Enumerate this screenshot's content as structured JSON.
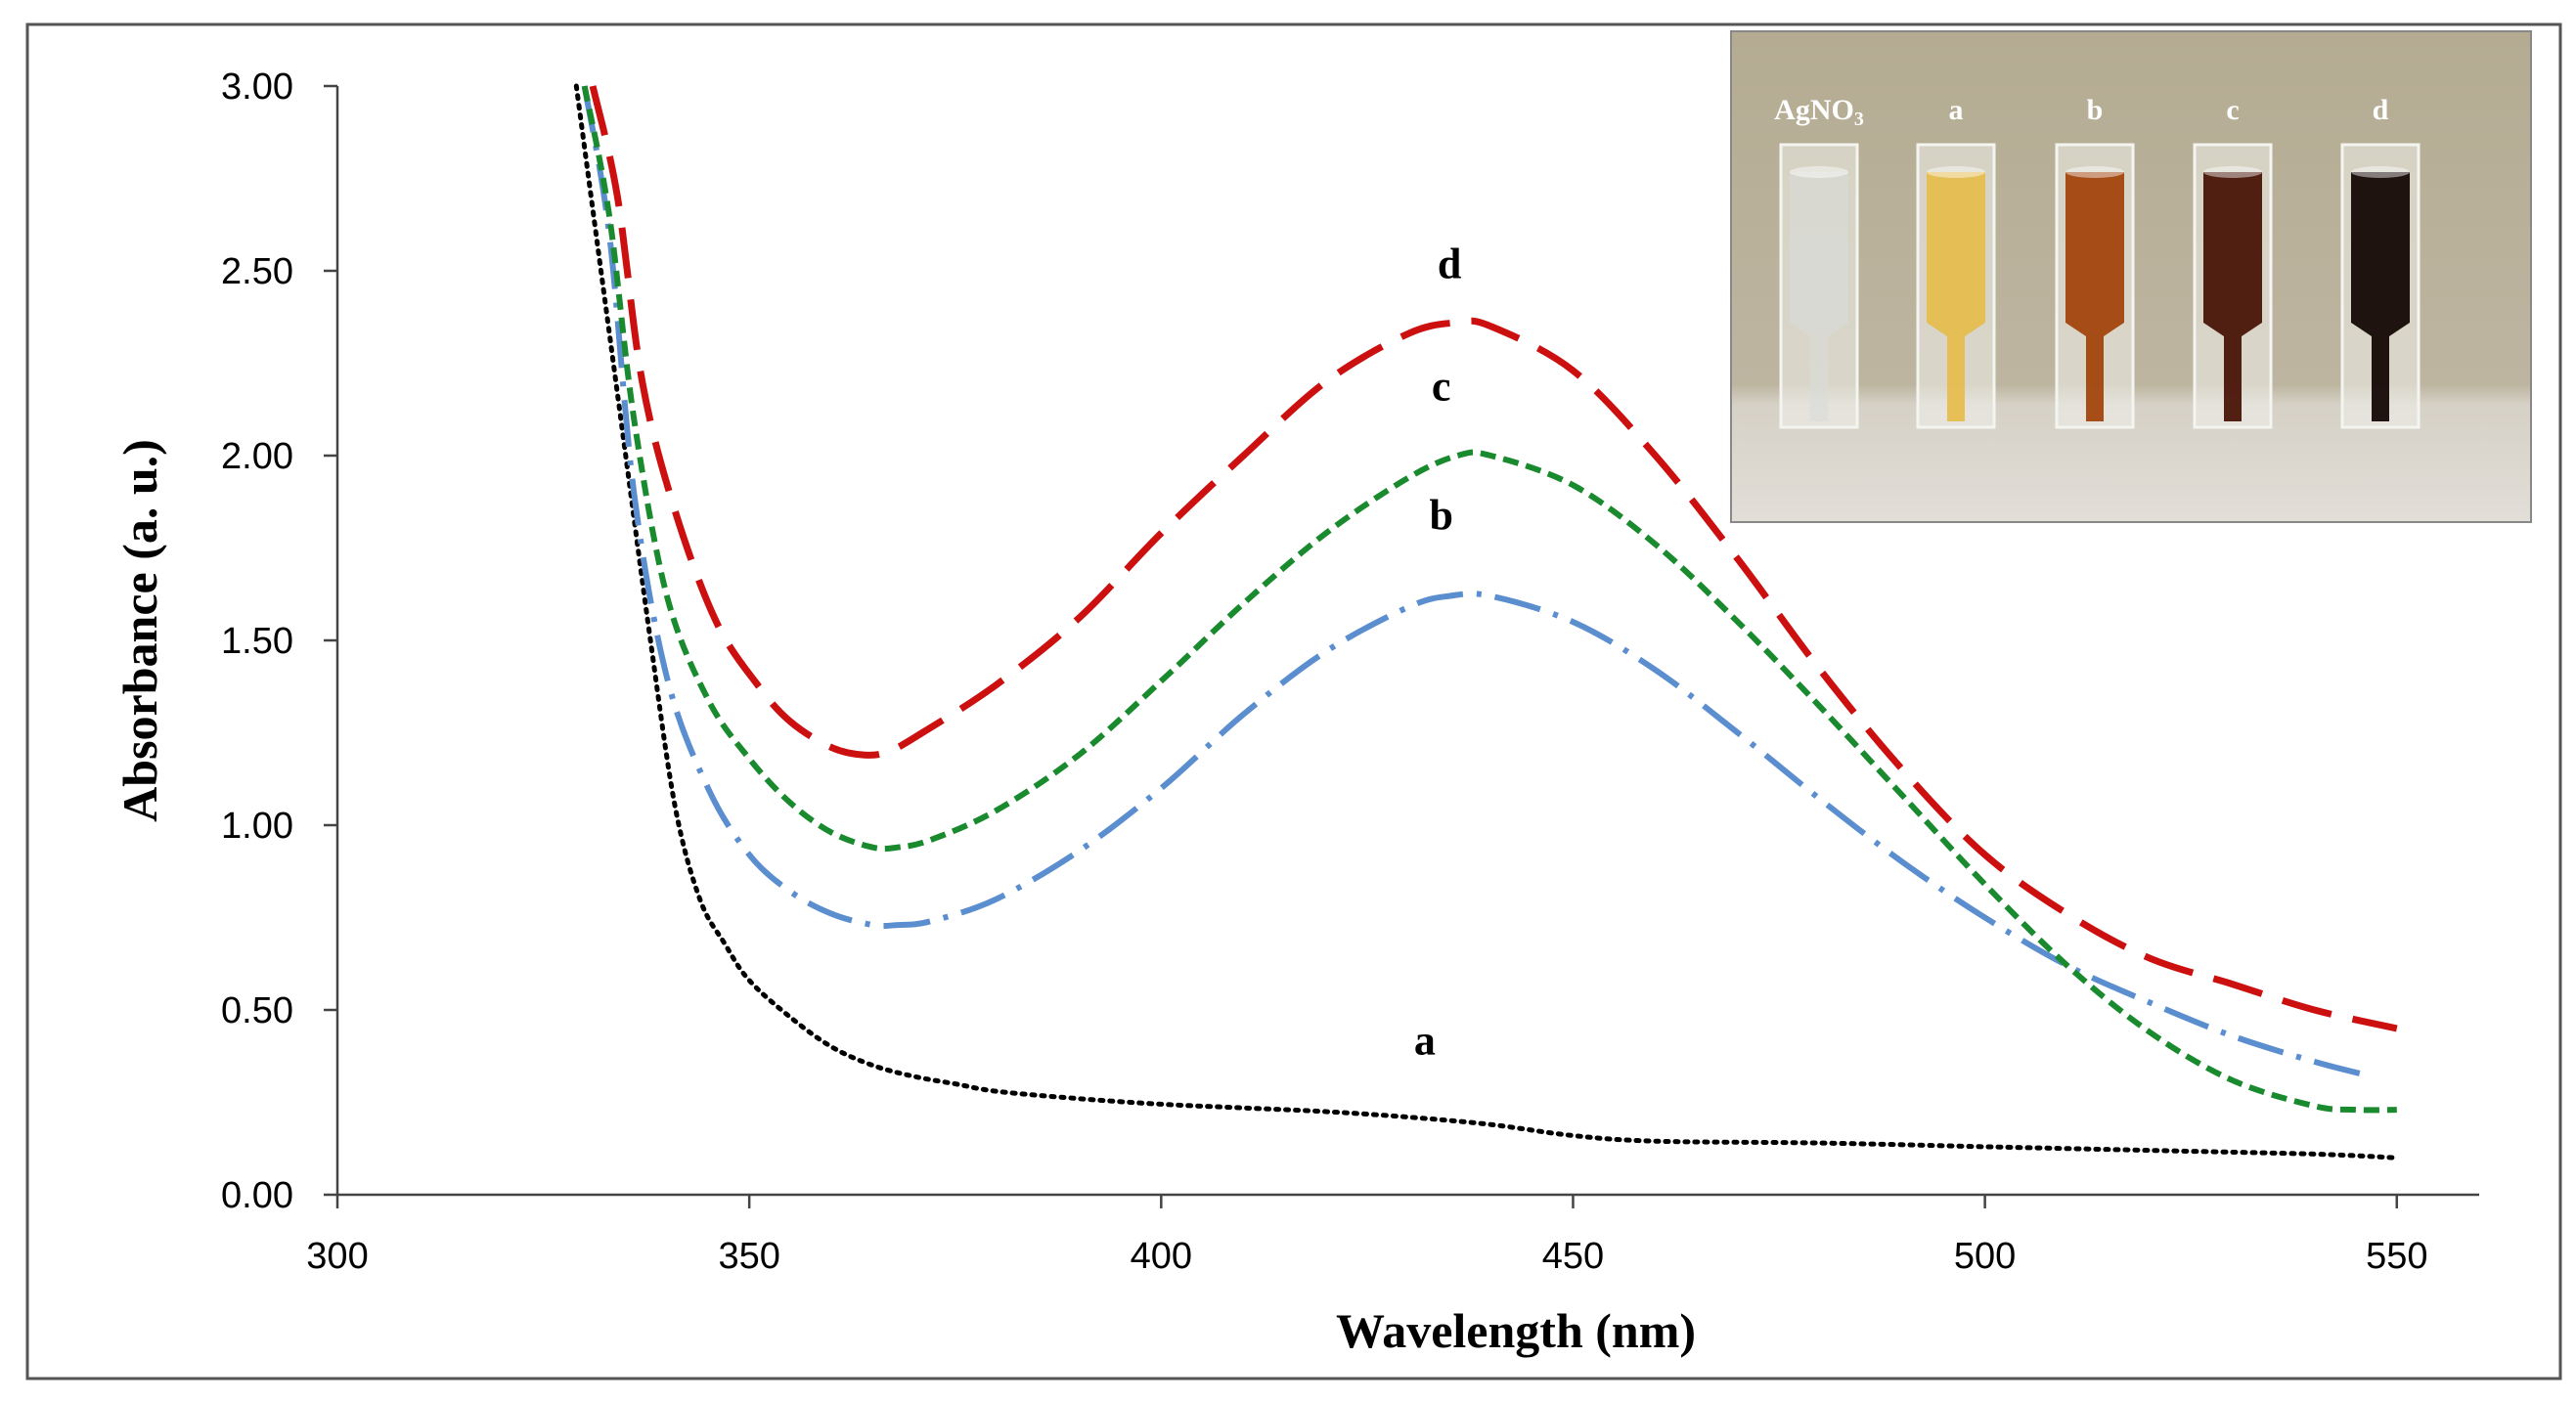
{
  "chart_data": {
    "type": "line",
    "title": "",
    "xlabel": "Wavelength (nm)",
    "ylabel": "Absorbance (a. u.)",
    "xlim": [
      300,
      560
    ],
    "ylim": [
      0,
      3
    ],
    "xticks": [
      300,
      350,
      400,
      450,
      500,
      550
    ],
    "yticks": [
      0,
      0.5,
      1,
      1.5,
      2,
      2.5,
      3
    ],
    "xtick_labels": [
      "300",
      "350",
      "400",
      "450",
      "500",
      "550"
    ],
    "ytick_labels": [
      "0.00",
      "0.50",
      "1.00",
      "1.50",
      "2.00",
      "2.50",
      "3.00"
    ],
    "grid": false,
    "series": [
      {
        "name": "a",
        "label": "a",
        "color": "#000000",
        "style": "dotted",
        "label_pos": [
          432,
          0.38
        ],
        "x": [
          329,
          332,
          335,
          338,
          341,
          344,
          347,
          350,
          355,
          360,
          365,
          370,
          375,
          380,
          390,
          400,
          410,
          420,
          430,
          440,
          450,
          460,
          480,
          500,
          520,
          540,
          550
        ],
        "y": [
          3.0,
          2.5,
          2.0,
          1.5,
          1.05,
          0.8,
          0.68,
          0.58,
          0.48,
          0.4,
          0.35,
          0.32,
          0.3,
          0.28,
          0.26,
          0.245,
          0.235,
          0.225,
          0.21,
          0.19,
          0.16,
          0.145,
          0.14,
          0.13,
          0.12,
          0.11,
          0.1
        ]
      },
      {
        "name": "b",
        "label": "b",
        "color": "#5b8ecf",
        "style": "dashdot",
        "label_pos": [
          434,
          1.8
        ],
        "x": [
          330,
          333,
          336,
          340,
          345,
          350,
          355,
          360,
          365,
          368,
          372,
          380,
          390,
          400,
          410,
          420,
          430,
          435,
          440,
          450,
          460,
          470,
          480,
          490,
          500,
          510,
          520,
          530,
          540,
          547
        ],
        "y": [
          3.0,
          2.6,
          1.9,
          1.4,
          1.1,
          0.92,
          0.82,
          0.76,
          0.73,
          0.73,
          0.74,
          0.8,
          0.93,
          1.1,
          1.3,
          1.47,
          1.59,
          1.62,
          1.62,
          1.55,
          1.42,
          1.25,
          1.07,
          0.9,
          0.75,
          0.62,
          0.52,
          0.43,
          0.36,
          0.32
        ]
      },
      {
        "name": "c",
        "label": "c",
        "color": "#1a8a2e",
        "style": "dashed",
        "label_pos": [
          434,
          2.15
        ],
        "x": [
          330,
          333,
          336,
          340,
          345,
          350,
          355,
          360,
          365,
          368,
          372,
          380,
          390,
          400,
          410,
          420,
          430,
          436,
          440,
          450,
          460,
          470,
          480,
          490,
          500,
          510,
          520,
          530,
          540,
          545,
          550
        ],
        "y": [
          3.0,
          2.65,
          2.1,
          1.62,
          1.34,
          1.18,
          1.06,
          0.98,
          0.94,
          0.94,
          0.96,
          1.04,
          1.19,
          1.39,
          1.6,
          1.79,
          1.94,
          2.0,
          2.0,
          1.92,
          1.76,
          1.55,
          1.32,
          1.08,
          0.84,
          0.62,
          0.44,
          0.31,
          0.24,
          0.23,
          0.23
        ]
      },
      {
        "name": "d",
        "label": "d",
        "color": "#cc1010",
        "style": "longdash",
        "label_pos": [
          435,
          2.48
        ],
        "x": [
          331,
          334,
          337,
          341,
          346,
          351,
          355,
          360,
          364,
          367,
          371,
          380,
          390,
          400,
          410,
          420,
          430,
          436,
          440,
          450,
          460,
          470,
          480,
          490,
          500,
          510,
          520,
          530,
          540,
          550
        ],
        "y": [
          3.0,
          2.7,
          2.2,
          1.85,
          1.55,
          1.38,
          1.28,
          1.21,
          1.19,
          1.2,
          1.25,
          1.38,
          1.56,
          1.79,
          2.0,
          2.2,
          2.33,
          2.36,
          2.35,
          2.23,
          2.0,
          1.72,
          1.42,
          1.15,
          0.92,
          0.76,
          0.64,
          0.57,
          0.5,
          0.45
        ]
      }
    ]
  },
  "inset_photo": {
    "description_labels": [
      "AgNO3",
      "a",
      "b",
      "c",
      "d"
    ],
    "cuvettes": [
      {
        "label": "AgNO",
        "sub": "3",
        "liquid_color": "#d8dcd8"
      },
      {
        "label": "a",
        "sub": "",
        "liquid_color": "#e7bd50"
      },
      {
        "label": "b",
        "sub": "",
        "liquid_color": "#a3460e"
      },
      {
        "label": "c",
        "sub": "",
        "liquid_color": "#4a1408"
      },
      {
        "label": "d",
        "sub": "",
        "liquid_color": "#150806"
      }
    ]
  }
}
